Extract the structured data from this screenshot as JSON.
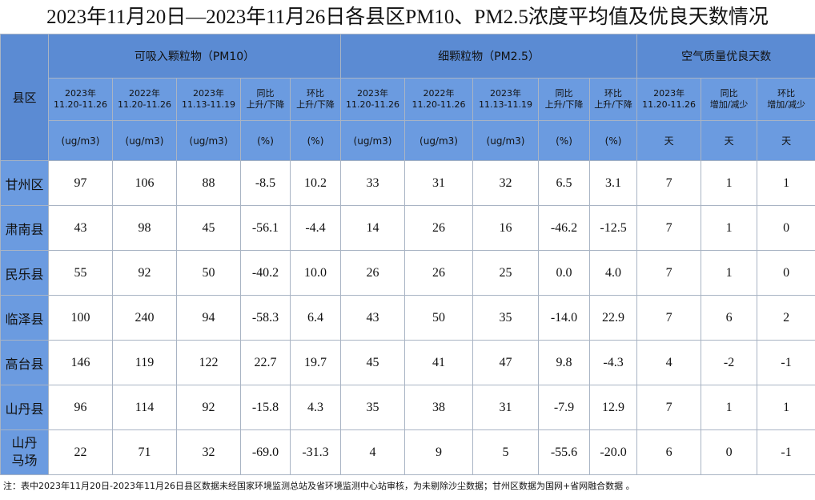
{
  "title": "2023年11月20日—2023年11月26日各县区PM10、PM2.5浓度平均值及优良天数情况",
  "table": {
    "corner": "县区",
    "groups": [
      "可吸入颗粒物（PM10）",
      "细颗粒物（PM2.5）",
      "空气质量优良天数"
    ],
    "subheaders": [
      [
        "2023年",
        "11.20-11.26"
      ],
      [
        "2022年",
        "11.20-11.26"
      ],
      [
        "2023年",
        "11.13-11.19"
      ],
      [
        "同比",
        "上升/下降"
      ],
      [
        "环比",
        "上升/下降"
      ],
      [
        "2023年",
        "11.20-11.26"
      ],
      [
        "2022年",
        "11.20-11.26"
      ],
      [
        "2023年",
        "11.13-11.19"
      ],
      [
        "同比",
        "上升/下降"
      ],
      [
        "环比",
        "上升/下降"
      ],
      [
        "2023年",
        "11.20-11.26"
      ],
      [
        "同比",
        "增加/减少"
      ],
      [
        "环比",
        "增加/减少"
      ]
    ],
    "units": [
      "(ug/m3)",
      "(ug/m3)",
      "(ug/m3)",
      "(%)",
      "(%)",
      "(ug/m3)",
      "(ug/m3)",
      "(ug/m3)",
      "(%)",
      "(%)",
      "天",
      "天",
      "天"
    ],
    "rows": [
      [
        "甘州区",
        "97",
        "106",
        "88",
        "-8.5",
        "10.2",
        "33",
        "31",
        "32",
        "6.5",
        "3.1",
        "7",
        "1",
        "1"
      ],
      [
        "肃南县",
        "43",
        "98",
        "45",
        "-56.1",
        "-4.4",
        "14",
        "26",
        "16",
        "-46.2",
        "-12.5",
        "7",
        "1",
        "0"
      ],
      [
        "民乐县",
        "55",
        "92",
        "50",
        "-40.2",
        "10.0",
        "26",
        "26",
        "25",
        "0.0",
        "4.0",
        "7",
        "1",
        "0"
      ],
      [
        "临泽县",
        "100",
        "240",
        "94",
        "-58.3",
        "6.4",
        "43",
        "50",
        "35",
        "-14.0",
        "22.9",
        "7",
        "6",
        "2"
      ],
      [
        "高台县",
        "146",
        "119",
        "122",
        "22.7",
        "19.7",
        "45",
        "41",
        "47",
        "9.8",
        "-4.3",
        "4",
        "-2",
        "-1"
      ],
      [
        "山丹县",
        "96",
        "114",
        "92",
        "-15.8",
        "4.3",
        "35",
        "38",
        "31",
        "-7.9",
        "12.9",
        "7",
        "1",
        "1"
      ],
      [
        "山丹马场",
        "22",
        "71",
        "32",
        "-69.0",
        "-31.3",
        "4",
        "9",
        "5",
        "-55.6",
        "-20.0",
        "6",
        "0",
        "-1"
      ]
    ]
  },
  "note": "注：表中2023年11月20日-2023年11月26日县区数据未经国家环境监测总站及省环境监测中心站审核，为未剔除沙尘数据；甘州区数据为国网+省网融合数据 。"
}
